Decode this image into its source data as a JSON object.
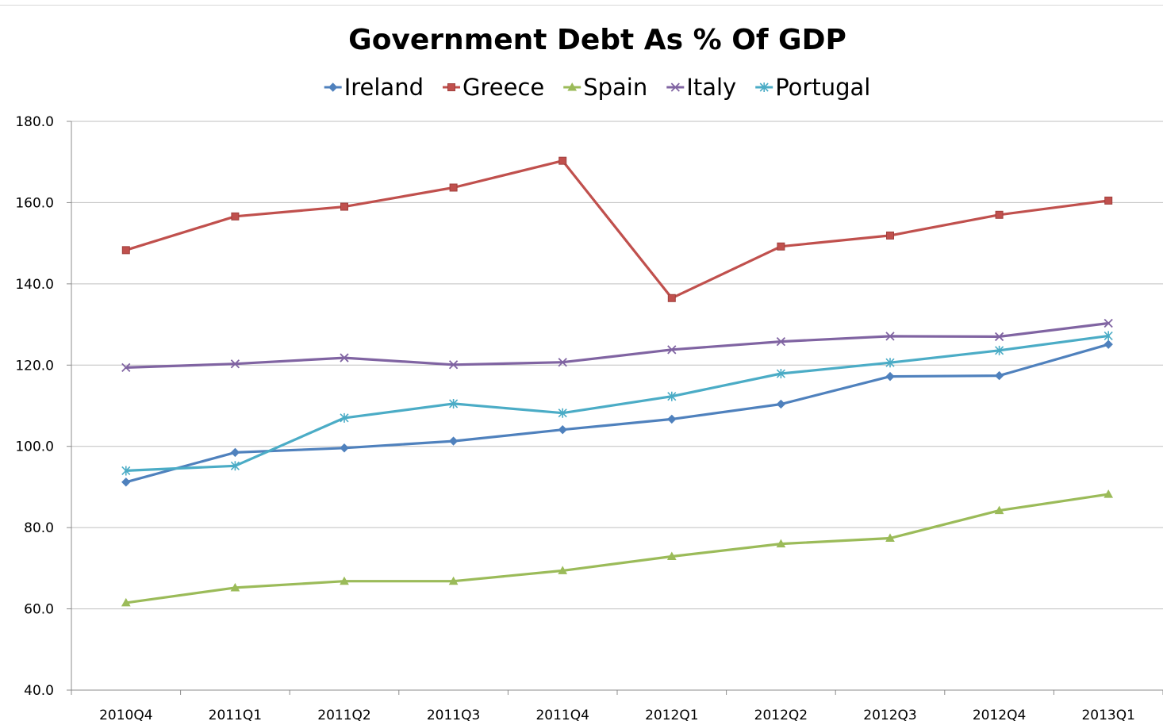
{
  "chart_data": {
    "type": "line",
    "title": "Government Debt As % Of GDP",
    "xlabel": "",
    "ylabel": "",
    "categories": [
      "2010Q4",
      "2011Q1",
      "2011Q2",
      "2011Q3",
      "2011Q4",
      "2012Q1",
      "2012Q2",
      "2012Q3",
      "2012Q4",
      "2013Q1"
    ],
    "ylim": [
      40,
      180
    ],
    "yticks": [
      "40.0",
      "60.0",
      "80.0",
      "100.0",
      "120.0",
      "140.0",
      "160.0",
      "180.0"
    ],
    "grid": "horizontal",
    "legend_position": "top",
    "series": [
      {
        "name": "Ireland",
        "color": "#4f81bd",
        "marker": "diamond",
        "values": [
          91.2,
          98.5,
          99.6,
          101.3,
          104.1,
          106.7,
          110.4,
          117.2,
          117.4,
          125.1
        ]
      },
      {
        "name": "Greece",
        "color": "#c0504d",
        "marker": "square",
        "values": [
          148.3,
          156.6,
          159.0,
          163.7,
          170.3,
          136.5,
          149.2,
          151.9,
          157.0,
          160.5
        ]
      },
      {
        "name": "Spain",
        "color": "#9bbb59",
        "marker": "triangle",
        "values": [
          61.5,
          65.2,
          66.8,
          66.8,
          69.4,
          72.9,
          76.0,
          77.4,
          84.2,
          88.2
        ]
      },
      {
        "name": "Italy",
        "color": "#8064a2",
        "marker": "x",
        "values": [
          119.4,
          120.3,
          121.8,
          120.1,
          120.7,
          123.8,
          125.8,
          127.1,
          127.0,
          130.3
        ]
      },
      {
        "name": "Portugal",
        "color": "#4bacc6",
        "marker": "star",
        "values": [
          94.0,
          95.2,
          107.0,
          110.5,
          108.2,
          112.3,
          117.9,
          120.6,
          123.6,
          127.2
        ]
      }
    ]
  }
}
